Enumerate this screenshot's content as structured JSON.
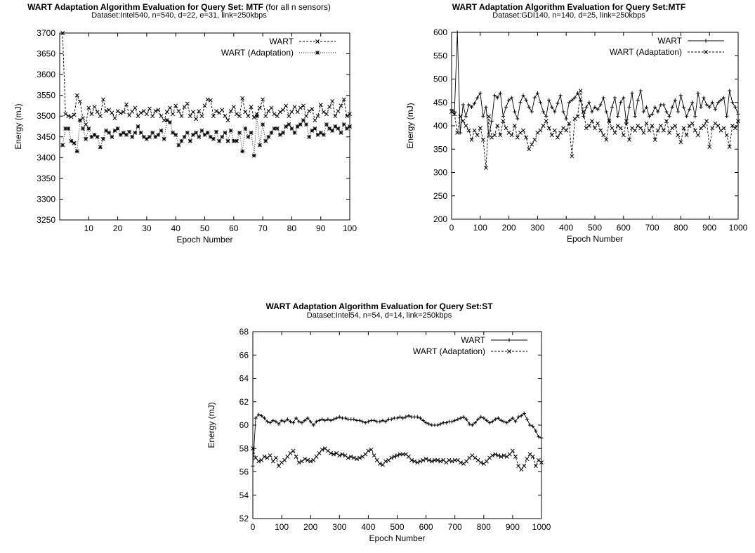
{
  "chart_data": [
    {
      "type": "line",
      "title": "WART Adaptation Algorithm Evaluation for Query Set: MTF",
      "title_suffix": "(for all n sensors)",
      "subtitle": "Dataset:Intel540, n=540, d=22, e=31, link=250kbps",
      "xlabel": "Epoch Number",
      "ylabel": "Energy (mJ)",
      "xlim": [
        0,
        100
      ],
      "ylim": [
        3250,
        3700
      ],
      "xticks": [
        10,
        20,
        30,
        40,
        50,
        60,
        70,
        80,
        90,
        100
      ],
      "yticks": [
        3250,
        3300,
        3350,
        3400,
        3450,
        3500,
        3550,
        3600,
        3650,
        3700
      ],
      "grid": false,
      "legend_position": "top-right",
      "x": [
        1,
        2,
        3,
        4,
        5,
        6,
        7,
        8,
        9,
        10,
        11,
        12,
        13,
        14,
        15,
        16,
        17,
        18,
        19,
        20,
        21,
        22,
        23,
        24,
        25,
        26,
        27,
        28,
        29,
        30,
        31,
        32,
        33,
        34,
        35,
        36,
        37,
        38,
        39,
        40,
        41,
        42,
        43,
        44,
        45,
        46,
        47,
        48,
        49,
        50,
        51,
        52,
        53,
        54,
        55,
        56,
        57,
        58,
        59,
        60,
        61,
        62,
        63,
        64,
        65,
        66,
        67,
        68,
        69,
        70,
        71,
        72,
        73,
        74,
        75,
        76,
        77,
        78,
        79,
        80,
        81,
        82,
        83,
        84,
        85,
        86,
        87,
        88,
        89,
        90,
        91,
        92,
        93,
        94,
        95,
        96,
        97,
        98,
        99,
        100
      ],
      "series": [
        {
          "name": "WART",
          "marker": "x",
          "dash": "3,2",
          "values": [
            3700,
            3505,
            3500,
            3498,
            3503,
            3550,
            3535,
            3495,
            3480,
            3520,
            3505,
            3522,
            3510,
            3500,
            3540,
            3512,
            3515,
            3508,
            3495,
            3512,
            3507,
            3510,
            3528,
            3502,
            3511,
            3520,
            3500,
            3508,
            3512,
            3505,
            3518,
            3500,
            3512,
            3515,
            3500,
            3490,
            3510,
            3520,
            3505,
            3525,
            3512,
            3500,
            3522,
            3530,
            3500,
            3510,
            3493,
            3512,
            3500,
            3525,
            3540,
            3538,
            3500,
            3512,
            3508,
            3515,
            3500,
            3490,
            3512,
            3522,
            3505,
            3500,
            3543,
            3510,
            3500,
            3522,
            3497,
            3505,
            3520,
            3540,
            3500,
            3512,
            3520,
            3505,
            3500,
            3510,
            3515,
            3525,
            3500,
            3510,
            3522,
            3510,
            3520,
            3525,
            3500,
            3512,
            3517,
            3490,
            3500,
            3527,
            3510,
            3505,
            3522,
            3536,
            3500,
            3512,
            3525,
            3540,
            3500,
            3505
          ]
        },
        {
          "name": "WART (Adaptation)",
          "marker": "asterisk",
          "dash": "1,2",
          "values": [
            3430,
            3470,
            3470,
            3440,
            3435,
            3415,
            3490,
            3470,
            3445,
            3470,
            3450,
            3455,
            3450,
            3425,
            3445,
            3465,
            3460,
            3450,
            3465,
            3470,
            3455,
            3460,
            3455,
            3462,
            3450,
            3460,
            3475,
            3460,
            3450,
            3445,
            3450,
            3460,
            3450,
            3455,
            3465,
            3445,
            3490,
            3485,
            3460,
            3455,
            3430,
            3440,
            3450,
            3460,
            3440,
            3455,
            3460,
            3450,
            3465,
            3455,
            3460,
            3450,
            3445,
            3462,
            3440,
            3450,
            3460,
            3440,
            3465,
            3440,
            3440,
            3460,
            3415,
            3470,
            3450,
            3460,
            3405,
            3500,
            3430,
            3480,
            3440,
            3450,
            3460,
            3470,
            3470,
            3455,
            3460,
            3475,
            3480,
            3470,
            3460,
            3475,
            3480,
            3490,
            3480,
            3450,
            3465,
            3470,
            3455,
            3460,
            3455,
            3480,
            3470,
            3465,
            3475,
            3470,
            3460,
            3480,
            3470,
            3475
          ]
        }
      ]
    },
    {
      "type": "line",
      "title": "WART Adaptation Algorithm Evaluation for Query Set:MTF",
      "subtitle": "Dataset:GDI140, n=140, d=25, link=250kbps",
      "xlabel": "Epoch Number",
      "ylabel": "Energy (mJ)",
      "xlim": [
        0,
        1000
      ],
      "ylim": [
        200,
        600
      ],
      "xticks": [
        0,
        100,
        200,
        300,
        400,
        500,
        600,
        700,
        800,
        900,
        1000
      ],
      "yticks": [
        200,
        250,
        300,
        350,
        400,
        450,
        500,
        550,
        600
      ],
      "grid": false,
      "legend_position": "top-right",
      "x": [
        0,
        10,
        20,
        30,
        40,
        50,
        60,
        70,
        80,
        90,
        100,
        110,
        120,
        130,
        140,
        150,
        160,
        170,
        180,
        190,
        200,
        210,
        220,
        230,
        240,
        250,
        260,
        270,
        280,
        290,
        300,
        310,
        320,
        330,
        340,
        350,
        360,
        370,
        380,
        390,
        400,
        410,
        420,
        430,
        440,
        450,
        460,
        470,
        480,
        490,
        500,
        510,
        520,
        530,
        540,
        550,
        560,
        570,
        580,
        590,
        600,
        610,
        620,
        630,
        640,
        650,
        660,
        670,
        680,
        690,
        700,
        710,
        720,
        730,
        740,
        750,
        760,
        770,
        780,
        790,
        800,
        810,
        820,
        830,
        840,
        850,
        860,
        870,
        880,
        890,
        900,
        910,
        920,
        930,
        940,
        950,
        960,
        970,
        980,
        990,
        1000
      ],
      "series": [
        {
          "name": "WART",
          "marker": "+",
          "dash": "",
          "values": [
            435,
            430,
            600,
            385,
            445,
            420,
            445,
            440,
            448,
            460,
            470,
            420,
            440,
            378,
            410,
            465,
            460,
            470,
            420,
            440,
            455,
            460,
            430,
            415,
            450,
            465,
            455,
            440,
            430,
            460,
            470,
            450,
            430,
            420,
            455,
            440,
            430,
            448,
            465,
            430,
            415,
            450,
            455,
            460,
            470,
            455,
            420,
            440,
            450,
            430,
            440,
            435,
            445,
            460,
            430,
            410,
            440,
            460,
            420,
            450,
            460,
            405,
            440,
            470,
            420,
            455,
            475,
            430,
            440,
            420,
            425,
            440,
            430,
            445,
            445,
            430,
            420,
            440,
            455,
            430,
            465,
            440,
            420,
            435,
            450,
            420,
            470,
            440,
            460,
            445,
            440,
            450,
            435,
            450,
            455,
            460,
            420,
            475,
            450,
            440,
            425
          ]
        },
        {
          "name": "WART (Adaptation)",
          "marker": "x",
          "dash": "3,2",
          "values": [
            430,
            425,
            385,
            420,
            410,
            400,
            390,
            370,
            390,
            380,
            395,
            370,
            310,
            420,
            375,
            380,
            400,
            380,
            410,
            395,
            385,
            380,
            400,
            375,
            385,
            390,
            375,
            350,
            360,
            370,
            385,
            390,
            400,
            410,
            395,
            380,
            390,
            375,
            385,
            395,
            390,
            405,
            335,
            415,
            420,
            475,
            430,
            395,
            400,
            410,
            395,
            405,
            390,
            380,
            370,
            410,
            395,
            385,
            400,
            395,
            380,
            410,
            370,
            395,
            390,
            400,
            395,
            385,
            405,
            390,
            400,
            370,
            390,
            400,
            390,
            410,
            385,
            395,
            400,
            380,
            365,
            395,
            380,
            400,
            405,
            390,
            380,
            395,
            400,
            410,
            355,
            395,
            405,
            400,
            390,
            395,
            380,
            355,
            400,
            395,
            410
          ]
        }
      ]
    },
    {
      "type": "line",
      "title": "WART Adaptation Algorithm Evaluation for Query Set:ST",
      "subtitle": "Dataset:Intel54, n=54, d=14, link=250kbps",
      "xlabel": "Epoch Number",
      "ylabel": "Energy (mJ)",
      "xlim": [
        0,
        1000
      ],
      "ylim": [
        52,
        68
      ],
      "xticks": [
        0,
        100,
        200,
        300,
        400,
        500,
        600,
        700,
        800,
        900,
        1000
      ],
      "yticks": [
        52,
        54,
        56,
        58,
        60,
        62,
        64,
        66,
        68
      ],
      "grid": false,
      "legend_position": "top-right",
      "x": [
        0,
        10,
        20,
        30,
        40,
        50,
        60,
        70,
        80,
        90,
        100,
        110,
        120,
        130,
        140,
        150,
        160,
        170,
        180,
        190,
        200,
        210,
        220,
        230,
        240,
        250,
        260,
        270,
        280,
        290,
        300,
        310,
        320,
        330,
        340,
        350,
        360,
        370,
        380,
        390,
        400,
        410,
        420,
        430,
        440,
        450,
        460,
        470,
        480,
        490,
        500,
        510,
        520,
        530,
        540,
        550,
        560,
        570,
        580,
        590,
        600,
        610,
        620,
        630,
        640,
        650,
        660,
        670,
        680,
        690,
        700,
        710,
        720,
        730,
        740,
        750,
        760,
        770,
        780,
        790,
        800,
        810,
        820,
        830,
        840,
        850,
        860,
        870,
        880,
        890,
        900,
        910,
        920,
        930,
        940,
        950,
        960,
        970,
        980,
        990,
        1000
      ],
      "series": [
        {
          "name": "WART",
          "marker": "+",
          "dash": "",
          "values": [
            56.5,
            60.6,
            60.9,
            60.8,
            60.6,
            60.3,
            60.2,
            60.4,
            60.3,
            60.1,
            60.4,
            60.3,
            60.5,
            60.3,
            60.2,
            60.6,
            60.3,
            60.2,
            60.4,
            60.6,
            60.3,
            60.0,
            60.3,
            60.4,
            60.5,
            60.4,
            60.5,
            60.4,
            60.5,
            60.6,
            60.7,
            60.6,
            60.6,
            60.5,
            60.5,
            60.5,
            60.4,
            60.4,
            60.3,
            60.2,
            60.3,
            60.4,
            60.4,
            60.3,
            60.3,
            60.4,
            60.3,
            60.5,
            60.5,
            60.6,
            60.6,
            60.7,
            60.6,
            60.7,
            60.8,
            60.7,
            60.7,
            60.7,
            60.6,
            60.4,
            60.2,
            60.1,
            60.0,
            60.0,
            60.0,
            60.1,
            60.2,
            60.2,
            60.3,
            60.3,
            60.4,
            60.5,
            60.6,
            60.7,
            60.5,
            60.1,
            60.0,
            60.2,
            60.5,
            60.7,
            60.6,
            60.4,
            60.2,
            60.3,
            60.5,
            60.6,
            60.4,
            60.3,
            60.2,
            60.4,
            60.6,
            60.3,
            60.7,
            60.8,
            61.0,
            60.5,
            60.0,
            59.9,
            59.5,
            59.0,
            58.9
          ]
        },
        {
          "name": "WART (Adaptation)",
          "marker": "x",
          "dash": "3,2",
          "values": [
            58.0,
            57.2,
            56.9,
            57.0,
            57.3,
            57.2,
            57.4,
            56.9,
            57.2,
            56.5,
            56.8,
            57.0,
            57.3,
            57.6,
            57.8,
            57.3,
            56.8,
            56.9,
            57.1,
            57.0,
            56.9,
            57.0,
            57.3,
            57.6,
            57.9,
            58.0,
            57.8,
            57.6,
            57.5,
            57.6,
            57.4,
            57.5,
            57.4,
            57.2,
            57.3,
            57.2,
            57.1,
            57.2,
            57.3,
            57.5,
            57.8,
            57.9,
            57.4,
            57.0,
            56.7,
            56.6,
            56.9,
            57.0,
            57.2,
            57.3,
            57.4,
            57.5,
            57.5,
            57.5,
            57.3,
            57.0,
            56.9,
            56.8,
            56.9,
            57.0,
            57.1,
            57.0,
            56.9,
            57.0,
            57.0,
            56.9,
            57.0,
            56.8,
            57.0,
            56.9,
            57.0,
            57.0,
            56.8,
            56.7,
            56.9,
            57.2,
            57.4,
            57.2,
            57.0,
            56.8,
            56.7,
            56.9,
            57.2,
            57.4,
            57.5,
            57.4,
            57.3,
            57.4,
            57.3,
            57.5,
            57.8,
            57.3,
            56.5,
            56.2,
            56.5,
            57.1,
            57.5,
            57.3,
            56.5,
            57.0,
            56.8
          ]
        }
      ]
    }
  ]
}
